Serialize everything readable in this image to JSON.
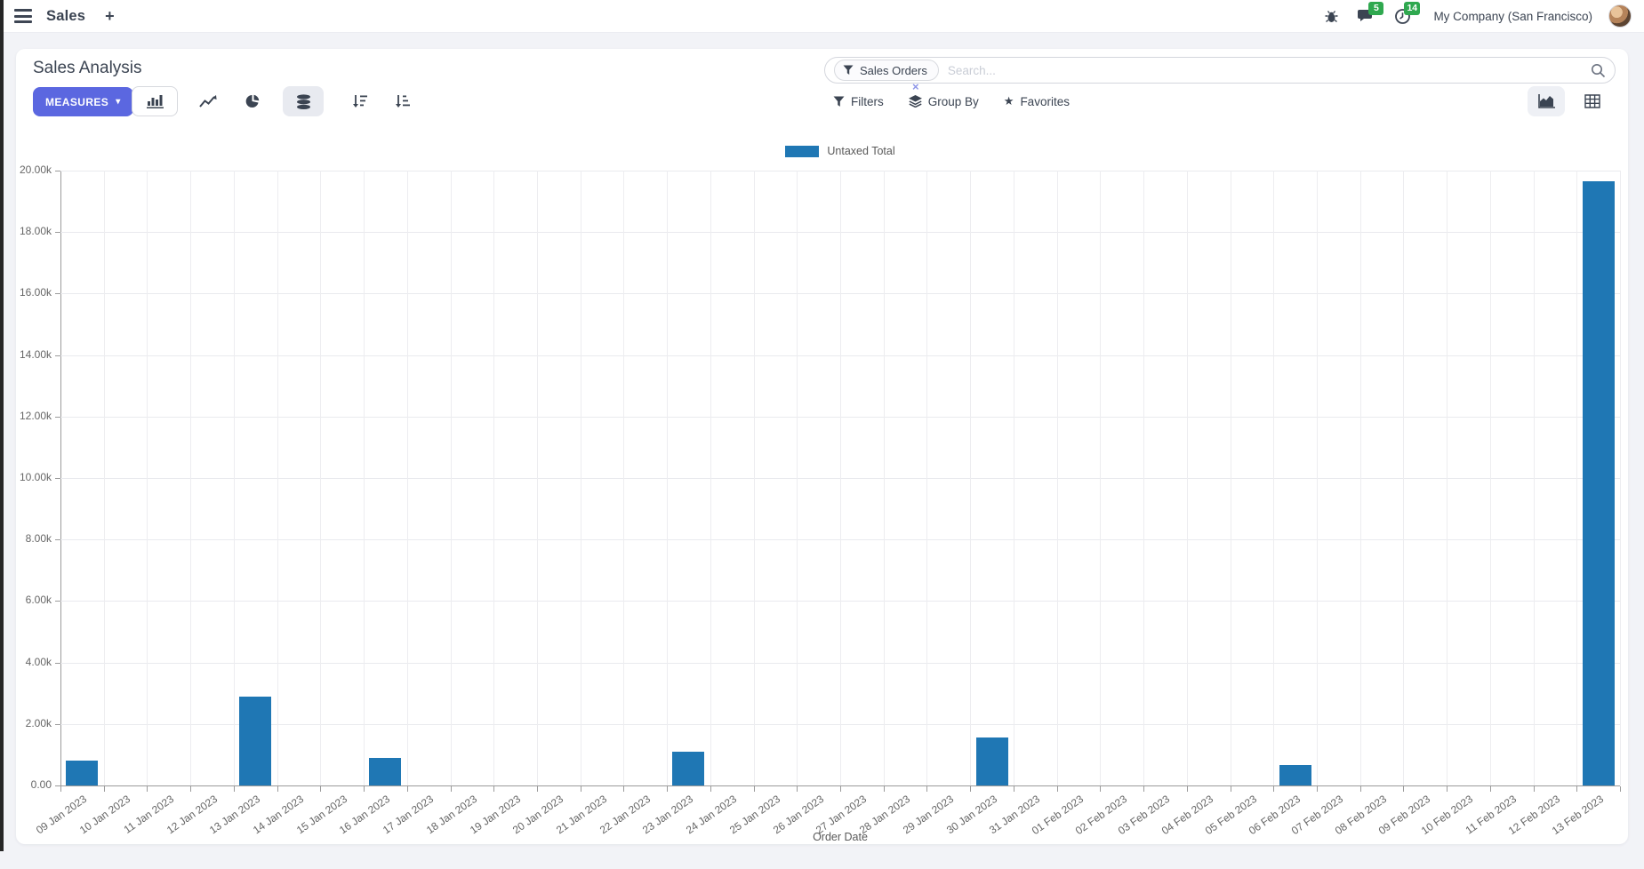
{
  "navbar": {
    "app_name": "Sales",
    "company": "My Company (San Francisco)",
    "badges": {
      "messages": "5",
      "activities": "14"
    }
  },
  "control_panel": {
    "title": "Sales Analysis",
    "measures_label": "MEASURES",
    "filters_label": "Filters",
    "groupby_label": "Group By",
    "favorites_label": "Favorites",
    "search": {
      "facet": "Sales Orders",
      "placeholder": "Search..."
    }
  },
  "icons": {
    "plus": "+",
    "caret": "▾",
    "star": "★",
    "facet_remove": "×"
  },
  "colors": {
    "accent": "#5b67e0",
    "bar": "#1f77b4",
    "badge_green": "#2fa84f",
    "grid": "#e9eaee",
    "axis": "#9b9b9b"
  },
  "chart_data": {
    "type": "bar",
    "title": "",
    "legend": [
      "Untaxed Total"
    ],
    "legend_position": "top",
    "xlabel": "Order Date",
    "ylabel": "",
    "ylim": [
      0,
      20000
    ],
    "ytick_step": 2000,
    "ytick_labels": [
      "0.00",
      "2.00k",
      "4.00k",
      "6.00k",
      "8.00k",
      "10.00k",
      "12.00k",
      "14.00k",
      "16.00k",
      "18.00k",
      "20.00k"
    ],
    "grid": true,
    "categories": [
      "09 Jan 2023",
      "10 Jan 2023",
      "11 Jan 2023",
      "12 Jan 2023",
      "13 Jan 2023",
      "14 Jan 2023",
      "15 Jan 2023",
      "16 Jan 2023",
      "17 Jan 2023",
      "18 Jan 2023",
      "19 Jan 2023",
      "20 Jan 2023",
      "21 Jan 2023",
      "22 Jan 2023",
      "23 Jan 2023",
      "24 Jan 2023",
      "25 Jan 2023",
      "26 Jan 2023",
      "27 Jan 2023",
      "28 Jan 2023",
      "29 Jan 2023",
      "30 Jan 2023",
      "31 Jan 2023",
      "01 Feb 2023",
      "02 Feb 2023",
      "03 Feb 2023",
      "04 Feb 2023",
      "05 Feb 2023",
      "06 Feb 2023",
      "07 Feb 2023",
      "08 Feb 2023",
      "09 Feb 2023",
      "10 Feb 2023",
      "11 Feb 2023",
      "12 Feb 2023",
      "13 Feb 2023"
    ],
    "values": [
      800,
      0,
      0,
      0,
      2900,
      0,
      0,
      900,
      0,
      0,
      0,
      0,
      0,
      0,
      1100,
      0,
      0,
      0,
      0,
      0,
      0,
      1550,
      0,
      0,
      0,
      0,
      0,
      0,
      670,
      0,
      0,
      0,
      0,
      0,
      0,
      19650
    ]
  }
}
